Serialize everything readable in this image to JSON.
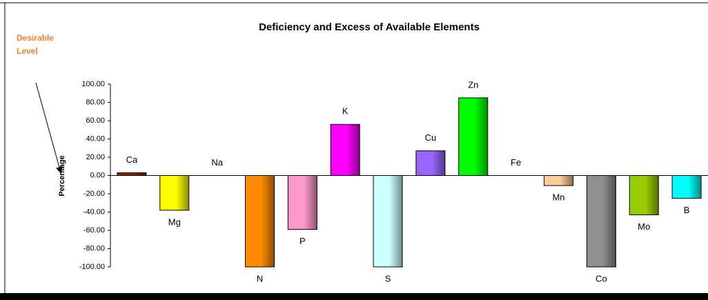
{
  "chart_data": {
    "type": "bar",
    "title": "Deficiency and Excess of Available Elements",
    "annotation": [
      "Desirable",
      "Level"
    ],
    "y_label": "Percentage",
    "categories": [
      "Ca",
      "Mg",
      "Na",
      "N",
      "P",
      "K",
      "S",
      "Cu",
      "Zn",
      "Fe",
      "Mn",
      "Co",
      "Mo",
      "B"
    ],
    "values": [
      3,
      -38,
      0,
      -100,
      -59,
      56,
      -100,
      27,
      85,
      0,
      -11,
      -100,
      -43,
      -25
    ],
    "colors": [
      "#8b2500",
      "#ffff00",
      "#999999",
      "#ff8c00",
      "#ff99cc",
      "#ff00ff",
      "#ccffff",
      "#9966ff",
      "#00ff00",
      "#999999",
      "#ffcc99",
      "#909090",
      "#99cc00",
      "#00ffff"
    ],
    "ylim": [
      -100,
      100
    ],
    "yticks": [
      {
        "value": 100,
        "label": "100.00"
      },
      {
        "value": 80,
        "label": "80.00"
      },
      {
        "value": 60,
        "label": "60.00"
      },
      {
        "value": 40,
        "label": "40.00"
      },
      {
        "value": 20,
        "label": "20.00"
      },
      {
        "value": 0,
        "label": "0.00"
      },
      {
        "value": -20,
        "label": "-20.00"
      },
      {
        "value": -40,
        "label": "-40.00"
      },
      {
        "value": -60,
        "label": "-60.00"
      },
      {
        "value": -80,
        "label": "-80.00"
      },
      {
        "value": -100,
        "label": "-100.00"
      }
    ]
  }
}
